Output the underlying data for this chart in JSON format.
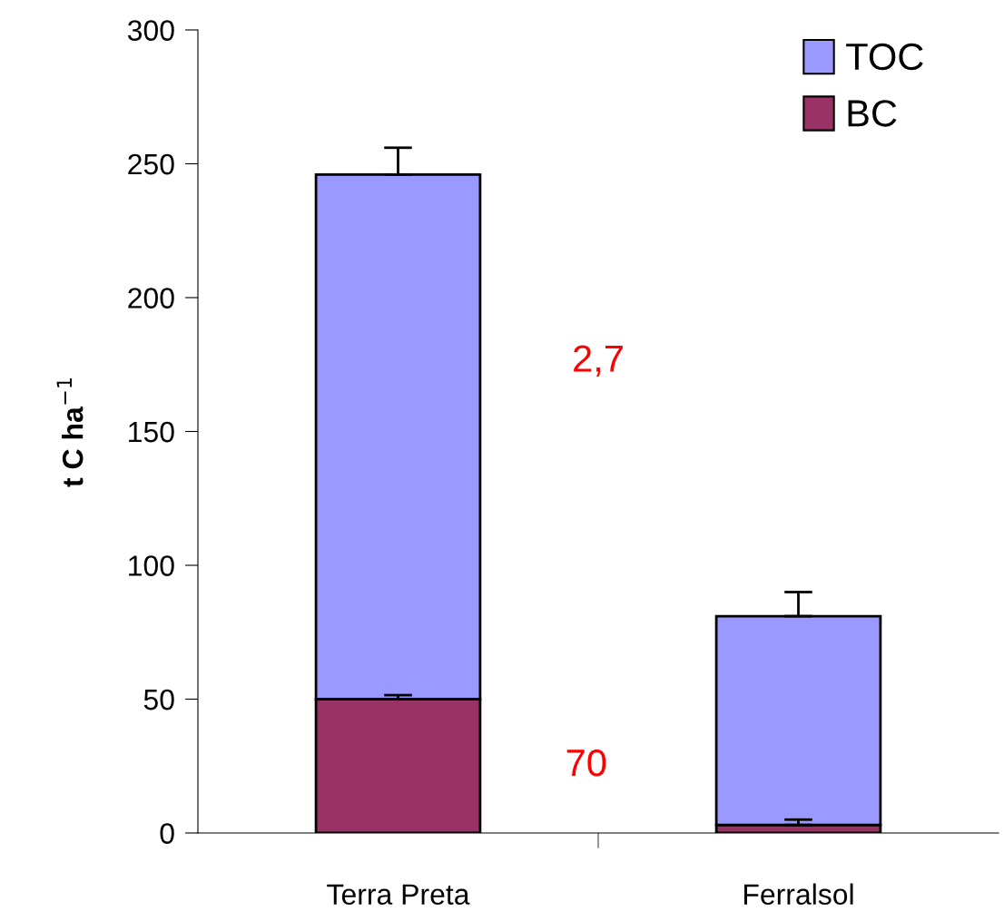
{
  "chart_data": {
    "type": "bar",
    "stacked": true,
    "ylabel": "t C ha$^{−1}$",
    "categories": [
      "Terra Preta",
      "Ferralsol"
    ],
    "series": [
      {
        "name": "BC",
        "color": "#993366",
        "values": [
          50,
          3
        ],
        "errors": [
          [
            50,
            51.5
          ],
          [
            3,
            5
          ]
        ]
      },
      {
        "name": "TOC",
        "color": "#9999ff",
        "values": [
          196,
          78
        ],
        "errors": [
          [
            246,
            256
          ],
          [
            81,
            90
          ]
        ]
      }
    ],
    "ylim": [
      0,
      300
    ],
    "yticks": [
      0,
      50,
      100,
      150,
      200,
      250,
      300
    ],
    "annotations": [
      "2,7",
      "70"
    ],
    "grid": false,
    "legend": "top right"
  }
}
